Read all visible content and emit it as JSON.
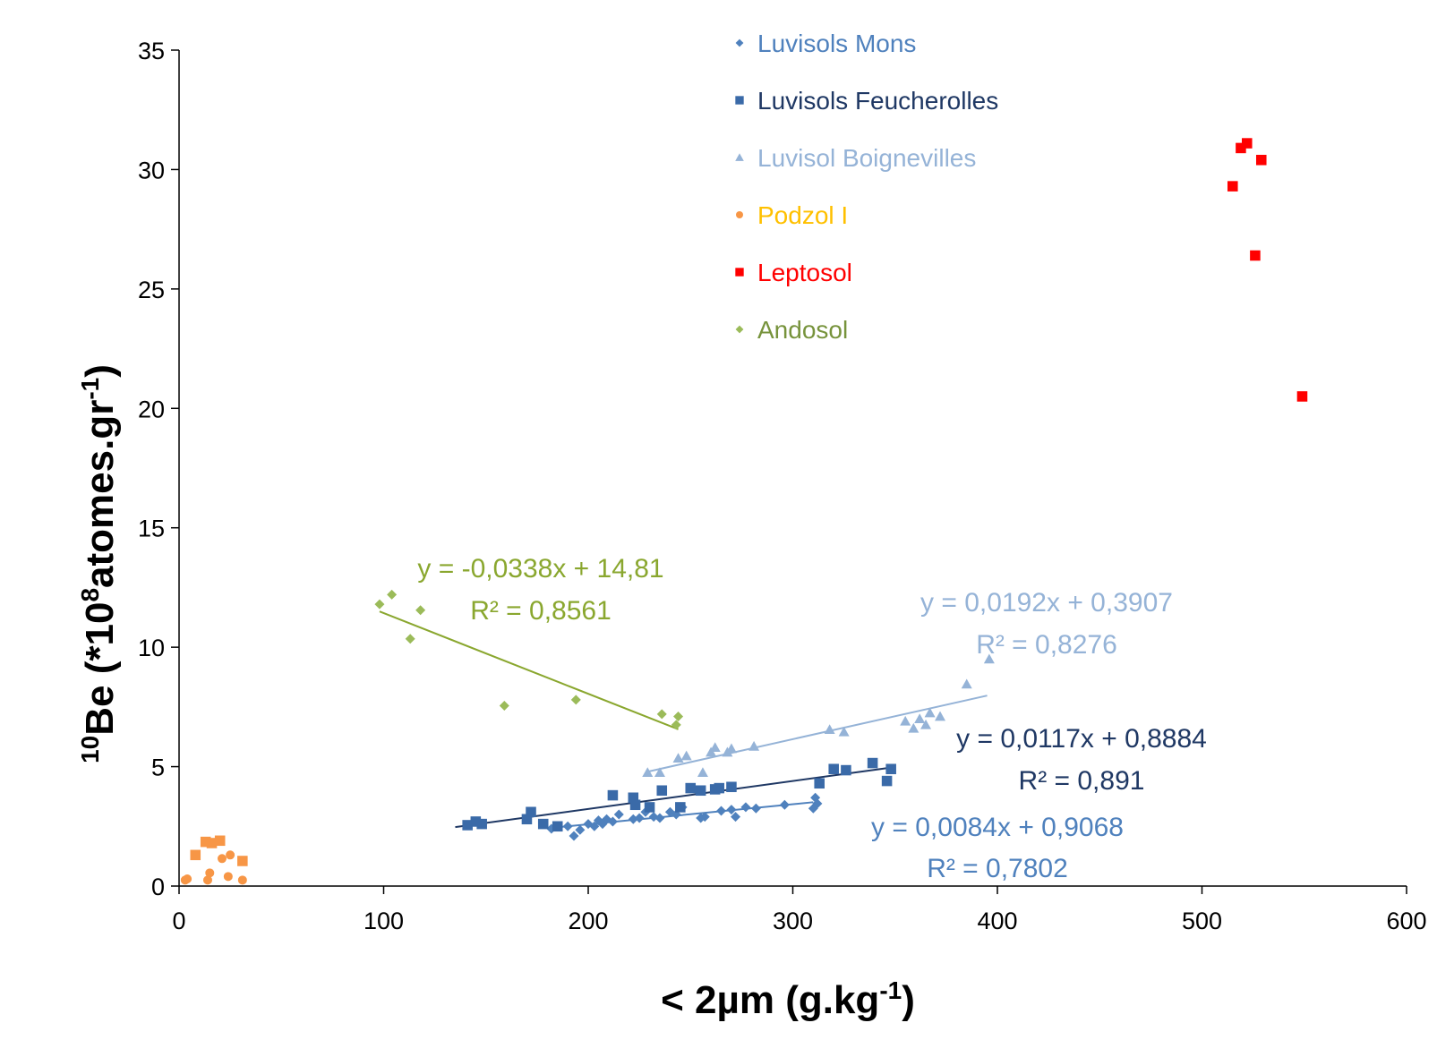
{
  "chart_data": {
    "type": "scatter",
    "xlabel": "< 2µm (g.kg",
    "xlabel_sup": "-1",
    "xlabel_tail": ")",
    "ylabel_pre_sup": "10",
    "ylabel_a": "Be (*10",
    "ylabel_sup1": "8",
    "ylabel_b": "atomes.gr",
    "ylabel_sup2": "-1",
    "ylabel_c": ")",
    "xlim": [
      0,
      600
    ],
    "ylim": [
      0,
      35
    ],
    "xticks": [
      0,
      100,
      200,
      300,
      400,
      500,
      600
    ],
    "yticks": [
      0,
      5,
      10,
      15,
      20,
      25,
      30,
      35
    ],
    "grid": false,
    "legend_position": "top-right",
    "series": [
      {
        "name": "Luvisols Mons",
        "marker": "diamond",
        "color": "#4F81BD",
        "x": [
          182,
          190,
          193,
          196,
          200,
          203,
          205,
          207,
          209,
          212,
          215,
          222,
          225,
          228,
          232,
          235,
          240,
          243,
          246,
          255,
          257,
          265,
          270,
          272,
          277,
          282,
          296,
          310,
          311,
          312
        ],
        "y": [
          2.4,
          2.5,
          2.1,
          2.35,
          2.6,
          2.5,
          2.75,
          2.6,
          2.8,
          2.7,
          3.0,
          2.8,
          2.85,
          3.1,
          2.9,
          2.85,
          3.1,
          3.0,
          3.3,
          2.85,
          2.9,
          3.15,
          3.2,
          2.9,
          3.3,
          3.25,
          3.4,
          3.25,
          3.7,
          3.45
        ],
        "trend": {
          "x0": 180,
          "x1": 310,
          "slope": 0.0084,
          "intercept": 0.9068,
          "equation": "y = 0,0084x + 0,9068",
          "r2": "R² = 0,7802"
        }
      },
      {
        "name": "Luvisols Feucherolles",
        "marker": "square",
        "color": "#3A6AA8",
        "x": [
          141,
          145,
          148,
          170,
          172,
          178,
          185,
          212,
          222,
          223,
          230,
          236,
          245,
          250,
          255,
          262,
          264,
          270,
          313,
          320,
          326,
          339,
          346,
          348
        ],
        "y": [
          2.55,
          2.7,
          2.6,
          2.8,
          3.1,
          2.6,
          2.5,
          3.8,
          3.7,
          3.4,
          3.3,
          4.0,
          3.3,
          4.1,
          4.0,
          4.05,
          4.1,
          4.15,
          4.3,
          4.9,
          4.85,
          5.15,
          4.4,
          4.9
        ],
        "trend": {
          "x0": 135,
          "x1": 348,
          "slope": 0.0117,
          "intercept": 0.8884,
          "equation": "y = 0,0117x + 0,8884",
          "r2": "R² = 0,891"
        }
      },
      {
        "name": "Luvisol Boignevilles",
        "marker": "triangle",
        "color": "#95B3D7",
        "x": [
          229,
          235,
          244,
          248,
          256,
          260,
          262,
          268,
          270,
          281,
          318,
          325,
          355,
          359,
          362,
          365,
          367,
          372,
          385,
          396
        ],
        "y": [
          4.75,
          4.75,
          5.35,
          5.45,
          4.75,
          5.6,
          5.8,
          5.6,
          5.75,
          5.85,
          6.55,
          6.45,
          6.9,
          6.6,
          7.0,
          6.75,
          7.25,
          7.1,
          8.45,
          9.5
        ],
        "trend": {
          "x0": 229,
          "x1": 395,
          "slope": 0.0192,
          "intercept": 0.3907,
          "equation": "y = 0,0192x + 0,3907",
          "r2": "R² = 0,8276"
        }
      },
      {
        "name": "Podzol I",
        "marker": "circle",
        "color": "#F79646",
        "x": [
          3,
          4,
          14,
          15,
          21,
          24,
          25,
          31
        ],
        "y": [
          0.25,
          0.3,
          0.25,
          0.55,
          1.15,
          0.4,
          1.3,
          0.25
        ]
      },
      {
        "name": "",
        "marker": "square",
        "color": "#F79646",
        "x": [
          8,
          13,
          16,
          20,
          31
        ],
        "y": [
          1.3,
          1.85,
          1.8,
          1.9,
          1.05
        ]
      },
      {
        "name": "Leptosol",
        "marker": "square",
        "color": "#FF0000",
        "x": [
          515,
          519,
          522,
          526,
          529,
          549
        ],
        "y": [
          29.3,
          30.9,
          31.1,
          26.4,
          30.4,
          20.5
        ]
      },
      {
        "name": "Andosol",
        "marker": "diamond",
        "color": "#9BBB59",
        "x": [
          98,
          104,
          113,
          118,
          159,
          194,
          236,
          243,
          244
        ],
        "y": [
          11.8,
          12.2,
          10.35,
          11.55,
          7.55,
          7.8,
          7.2,
          6.75,
          7.1
        ],
        "trend": {
          "x0": 98,
          "x1": 244,
          "slope": -0.0338,
          "intercept": 14.81,
          "equation": "y = -0,0338x + 14,81",
          "r2": "R² = 0,8561"
        }
      }
    ]
  },
  "legend": {
    "items": [
      {
        "label": "Luvisols Mons",
        "marker": "diamond",
        "text_color": "#4F81BD",
        "marker_color": "#4F81BD"
      },
      {
        "label": "Luvisols Feucherolles",
        "marker": "square",
        "text_color": "#1F3864",
        "marker_color": "#3A6AA8"
      },
      {
        "label": "Luvisol Boignevilles",
        "marker": "triangle",
        "text_color": "#95B3D7",
        "marker_color": "#95B3D7"
      },
      {
        "label": "Podzol I",
        "marker": "circle",
        "text_color": "#FFC000",
        "marker_color": "#F79646"
      },
      {
        "label": "Leptosol",
        "marker": "square",
        "text_color": "#FF0000",
        "marker_color": "#FF0000"
      },
      {
        "label": "Andosol",
        "marker": "diamond",
        "text_color": "#77933C",
        "marker_color": "#9BBB59"
      }
    ]
  },
  "equations": {
    "andosol_eq": "y = -0,0338x + 14,81",
    "andosol_r2": "R² = 0,8561",
    "andosol_color": "#8AA72F",
    "boignevilles_eq": "y = 0,0192x + 0,3907",
    "boignevilles_r2": "R² = 0,8276",
    "boignevilles_color": "#95B3D7",
    "feucherolles_eq": "y = 0,0117x + 0,8884",
    "feucherolles_r2": "R² = 0,891",
    "feucherolles_color": "#1F3864",
    "mons_eq": "y = 0,0084x + 0,9068",
    "mons_r2": "R² = 0,7802",
    "mons_color": "#4F81BD"
  },
  "trend_colors": {
    "mons": "#4F81BD",
    "feucherolles": "#1F3864",
    "boignevilles": "#95B3D7",
    "andosol": "#8AA72F"
  }
}
